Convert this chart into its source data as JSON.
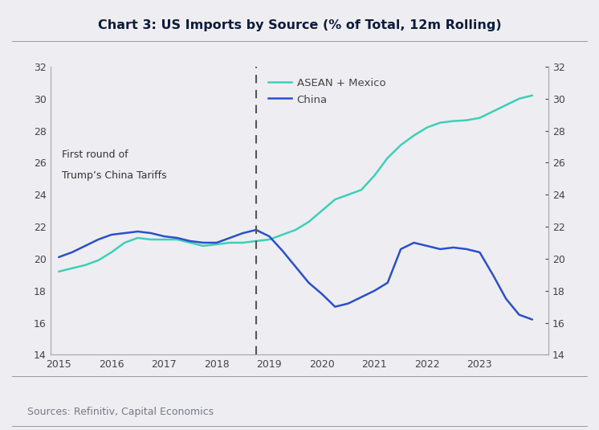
{
  "title": "Chart 3: US Imports by Source (% of Total, 12m Rolling)",
  "source_text": "Sources: Refinitiv, Capital Economics",
  "annotation_line1": "First round of",
  "annotation_line2": "Trump’s China Tariffs",
  "vline_x": 2018.75,
  "ylim": [
    14,
    32
  ],
  "yticks": [
    14,
    16,
    18,
    20,
    22,
    24,
    26,
    28,
    30,
    32
  ],
  "xlim": [
    2014.85,
    2024.3
  ],
  "xticks": [
    2015,
    2016,
    2017,
    2018,
    2019,
    2020,
    2021,
    2022,
    2023
  ],
  "legend_labels": [
    "ASEAN + Mexico",
    "China"
  ],
  "asean_color": "#3ECFB8",
  "china_color": "#2B4FCC",
  "background_color": "#EEEEF2",
  "plot_bg_color": "#EEEEF2",
  "title_color": "#0d1b3e",
  "tick_color": "#444444",
  "source_color": "#777788",
  "annotation_color": "#333333",
  "vline_color": "#555555",
  "spine_color": "#aaaaaa",
  "asean_x": [
    2015.0,
    2015.25,
    2015.5,
    2015.75,
    2016.0,
    2016.25,
    2016.5,
    2016.75,
    2017.0,
    2017.25,
    2017.5,
    2017.75,
    2018.0,
    2018.25,
    2018.5,
    2018.75,
    2019.0,
    2019.25,
    2019.5,
    2019.75,
    2020.0,
    2020.25,
    2020.5,
    2020.75,
    2021.0,
    2021.25,
    2021.5,
    2021.75,
    2022.0,
    2022.25,
    2022.5,
    2022.75,
    2023.0,
    2023.25,
    2023.5,
    2023.75,
    2024.0
  ],
  "asean_y": [
    19.2,
    19.4,
    19.6,
    19.9,
    20.4,
    21.0,
    21.3,
    21.2,
    21.2,
    21.2,
    21.0,
    20.8,
    20.9,
    21.0,
    21.0,
    21.1,
    21.2,
    21.5,
    21.8,
    22.3,
    23.0,
    23.7,
    24.0,
    24.3,
    25.2,
    26.3,
    27.1,
    27.7,
    28.2,
    28.5,
    28.6,
    28.65,
    28.8,
    29.2,
    29.6,
    30.0,
    30.2
  ],
  "china_x": [
    2015.0,
    2015.25,
    2015.5,
    2015.75,
    2016.0,
    2016.25,
    2016.5,
    2016.75,
    2017.0,
    2017.25,
    2017.5,
    2017.75,
    2018.0,
    2018.25,
    2018.5,
    2018.75,
    2019.0,
    2019.25,
    2019.5,
    2019.75,
    2020.0,
    2020.25,
    2020.5,
    2020.75,
    2021.0,
    2021.25,
    2021.5,
    2021.75,
    2022.0,
    2022.25,
    2022.5,
    2022.75,
    2023.0,
    2023.25,
    2023.5,
    2023.75,
    2024.0
  ],
  "china_y": [
    20.1,
    20.4,
    20.8,
    21.2,
    21.5,
    21.6,
    21.7,
    21.6,
    21.4,
    21.3,
    21.1,
    21.0,
    21.0,
    21.3,
    21.6,
    21.8,
    21.4,
    20.5,
    19.5,
    18.5,
    17.8,
    17.0,
    17.2,
    17.6,
    18.0,
    18.5,
    20.6,
    21.0,
    20.8,
    20.6,
    20.7,
    20.6,
    20.4,
    19.0,
    17.5,
    16.5,
    16.2
  ]
}
